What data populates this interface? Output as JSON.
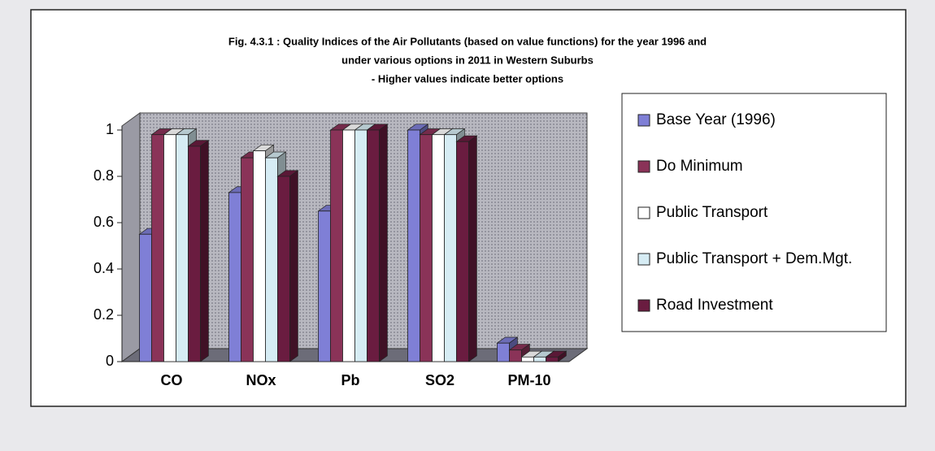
{
  "chart_data": {
    "type": "bar3d",
    "title": "Fig. 4.3.1 : Quality Indices of the Air Pollutants (based on value functions) for the year 1996 and",
    "subtitle": "under various options in 2011 in Western Suburbs",
    "annotation": "- Higher values indicate better options",
    "categories": [
      "CO",
      "NOx",
      "Pb",
      "SO2",
      "PM-10"
    ],
    "series": [
      {
        "name": "Base Year (1996)",
        "color": "#7f7fd6",
        "values": [
          0.55,
          0.73,
          0.65,
          1.0,
          0.08
        ]
      },
      {
        "name": "Do Minimum",
        "color": "#8a3358",
        "values": [
          0.98,
          0.88,
          1.0,
          0.98,
          0.05
        ]
      },
      {
        "name": "Public Transport",
        "color": "#ffffff",
        "values": [
          0.98,
          0.91,
          1.0,
          0.98,
          0.02
        ]
      },
      {
        "name": "Public Transport + Dem.Mgt.",
        "color": "#d6ecf4",
        "values": [
          0.98,
          0.88,
          1.0,
          0.98,
          0.02
        ]
      },
      {
        "name": "Road Investment",
        "color": "#6a1c40",
        "values": [
          0.93,
          0.8,
          1.0,
          0.95,
          0.02
        ]
      }
    ],
    "ylim": [
      0,
      1
    ],
    "yticks": [
      0,
      0.2,
      0.4,
      0.6,
      0.8,
      1
    ],
    "legend": "right"
  }
}
